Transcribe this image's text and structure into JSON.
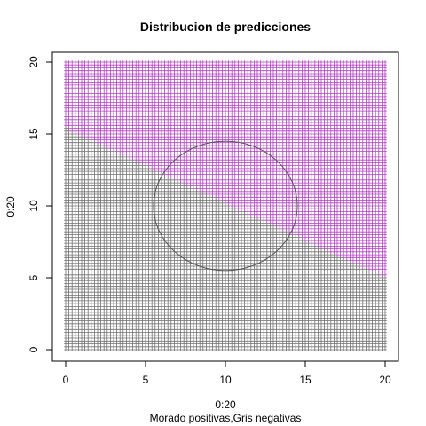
{
  "chart_data": {
    "type": "scatter",
    "title": "Distribucion de predicciones",
    "xlabel": "0:20",
    "ylabel": "0:20",
    "subtitle": "Morado positivas,Gris negativas",
    "xlim": [
      0,
      20
    ],
    "ylim": [
      0,
      20
    ],
    "xticks": [
      0,
      5,
      10,
      15,
      20
    ],
    "yticks": [
      0,
      5,
      10,
      15,
      20
    ],
    "grid": false,
    "legend": "none",
    "grid_points": {
      "x_range": [
        0,
        20
      ],
      "y_range": [
        0,
        20
      ],
      "step": 0.2,
      "marker": "+"
    },
    "decision_boundary": {
      "type": "line",
      "points": [
        [
          0,
          15.4
        ],
        [
          20,
          5.0
        ]
      ]
    },
    "series": [
      {
        "color": "#b040c0",
        "region": "above"
      },
      {
        "color": "#707070",
        "region": "below"
      }
    ],
    "circle": {
      "center": [
        10,
        10
      ],
      "radius": 4.5,
      "color": "#555555"
    }
  }
}
